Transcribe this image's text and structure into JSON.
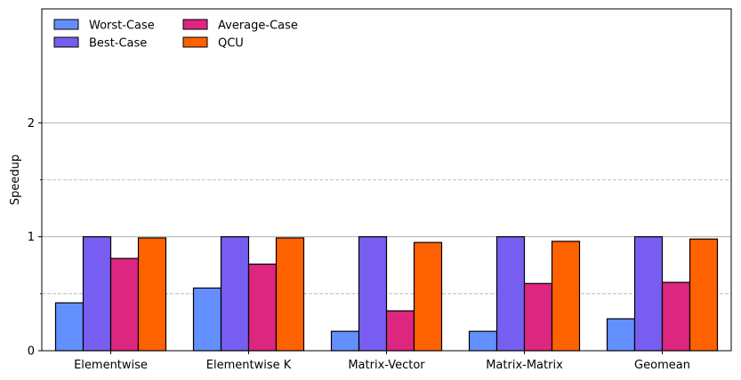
{
  "chart_data": {
    "type": "bar",
    "categories": [
      "Elementwise",
      "Elementwise K",
      "Matrix-Vector",
      "Matrix-Matrix",
      "Geomean"
    ],
    "series": [
      {
        "name": "Worst-Case",
        "color": "#648fff",
        "values": [
          0.42,
          0.55,
          0.17,
          0.17,
          0.28
        ]
      },
      {
        "name": "Best-Case",
        "color": "#785ef0",
        "values": [
          1.0,
          1.0,
          1.0,
          1.0,
          1.0
        ]
      },
      {
        "name": "Average-Case",
        "color": "#dc267f",
        "values": [
          0.81,
          0.76,
          0.35,
          0.59,
          0.6
        ]
      },
      {
        "name": "QCU",
        "color": "#fe6100",
        "values": [
          0.99,
          0.99,
          0.95,
          0.96,
          0.98
        ]
      }
    ],
    "xlabel": "",
    "ylabel": "Speedup",
    "ylim": [
      0,
      3
    ],
    "yticks": [
      0,
      1,
      2
    ],
    "major_grid": [
      1,
      2
    ],
    "minor_grid": [
      0.5,
      1.5
    ],
    "grid": true,
    "legend_placement": "top-left"
  }
}
